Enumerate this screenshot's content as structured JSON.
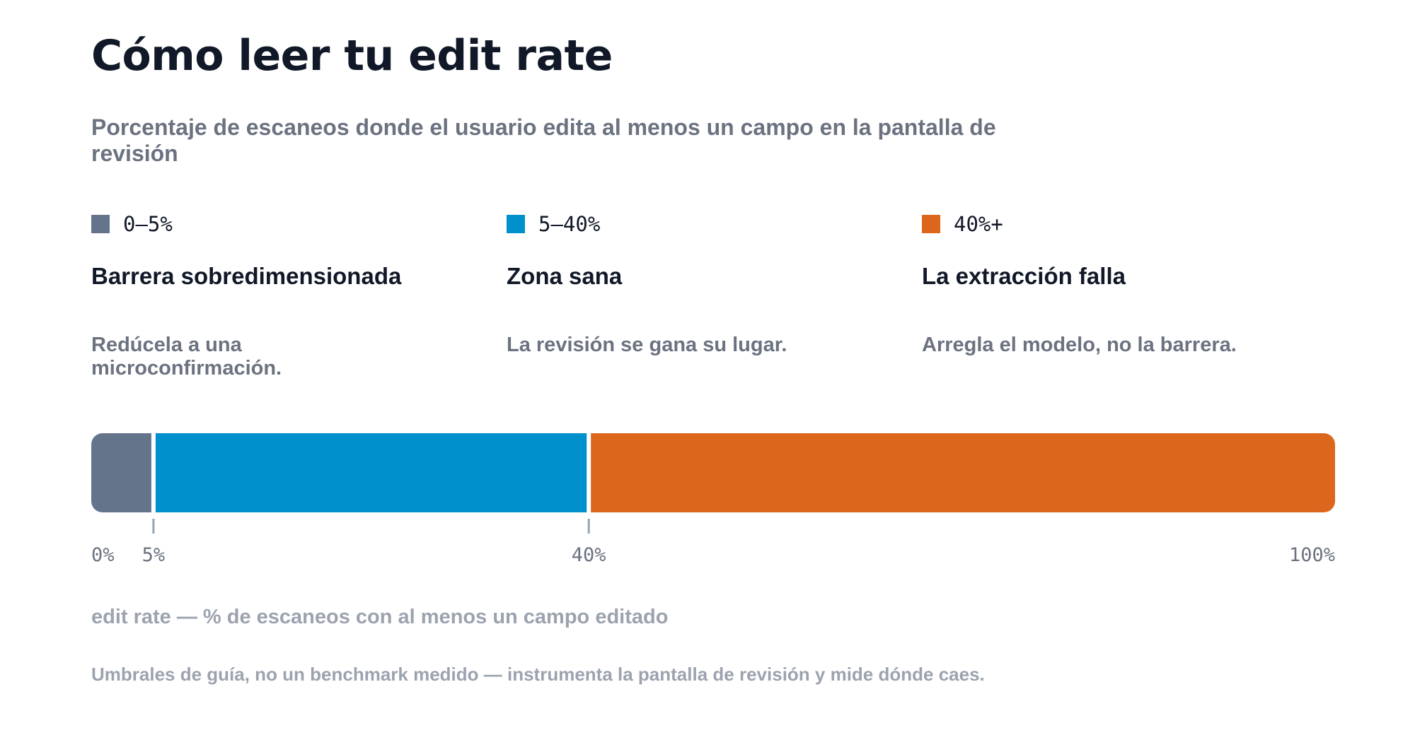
{
  "chart_data": {
    "type": "bar",
    "orientation": "horizontal-stacked",
    "title": "Cómo leer tu edit rate",
    "subtitle": "Porcentaje de escaneos donde el usuario edita al menos un campo en la pantalla de revisión",
    "xlabel": "edit rate — % de escaneos con al menos un campo editado",
    "xlim": [
      0,
      100
    ],
    "segments": [
      {
        "range": "0–5%",
        "start": 0,
        "end": 5,
        "color": "#64748b",
        "title": "Barrera sobredimensionada",
        "description": "Redúcela a una microconfirmación."
      },
      {
        "range": "5–40%",
        "start": 5,
        "end": 40,
        "color": "#0090cc",
        "title": "Zona sana",
        "description": "La revisión se gana su lugar."
      },
      {
        "range": "40%+",
        "start": 40,
        "end": 100,
        "color": "#db661c",
        "title": "La extracción falla",
        "description": "Arregla el modelo, no la barrera."
      }
    ],
    "ticks": [
      {
        "value": 0,
        "label": "0%",
        "marker": false
      },
      {
        "value": 5,
        "label": "5%",
        "marker": true
      },
      {
        "value": 40,
        "label": "40%",
        "marker": true
      },
      {
        "value": 100,
        "label": "100%",
        "marker": false
      }
    ]
  },
  "footnote": "Umbrales de guía, no un benchmark medido — instrumenta la pantalla de revisión y mide dónde caes."
}
